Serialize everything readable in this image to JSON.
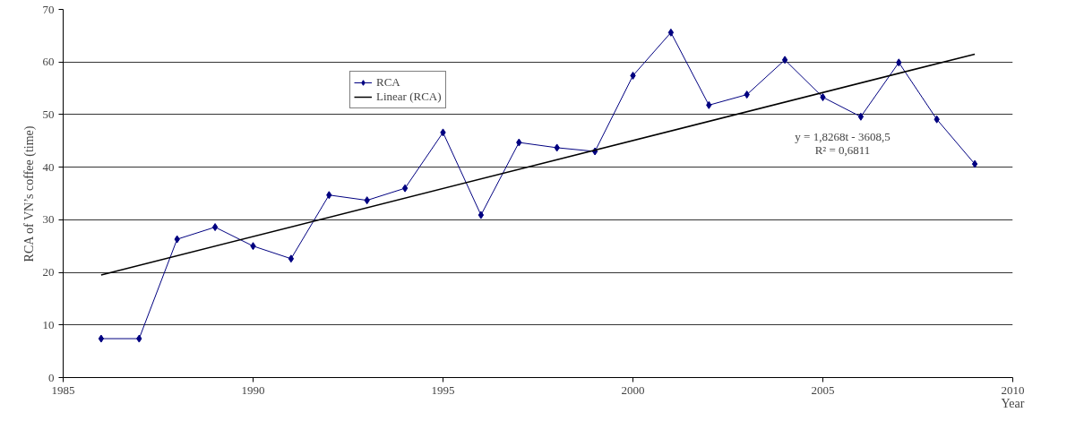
{
  "chart_data": {
    "type": "line",
    "xlabel": "Year",
    "ylabel": "RCA of VN’s coffee (time)",
    "x": [
      1986,
      1987,
      1988,
      1989,
      1990,
      1991,
      1992,
      1993,
      1994,
      1995,
      1996,
      1997,
      1998,
      1999,
      2000,
      2001,
      2002,
      2003,
      2004,
      2005,
      2006,
      2007,
      2008,
      2009
    ],
    "series": [
      {
        "name": "RCA",
        "color": "#000080",
        "marker": "diamond",
        "values": [
          7.4,
          7.4,
          26.3,
          28.6,
          25.0,
          22.6,
          34.7,
          33.7,
          36.0,
          46.6,
          30.9,
          44.7,
          43.7,
          43.0,
          57.4,
          65.6,
          51.8,
          53.8,
          60.4,
          53.3,
          49.6,
          59.9,
          49.1,
          40.6
        ]
      },
      {
        "name": "Linear (RCA)",
        "color": "#000000",
        "marker": "none",
        "x": [
          1986,
          2009
        ],
        "values": [
          19.5,
          61.5
        ]
      }
    ],
    "annotations": [
      "y = 1,8268t - 3608,5",
      "R² = 0,6811"
    ],
    "xlim": [
      1985,
      2010
    ],
    "xticks": [
      1985,
      1990,
      1995,
      2000,
      2005,
      2010
    ],
    "ylim": [
      0,
      70
    ],
    "yticks": [
      0,
      10,
      20,
      30,
      40,
      50,
      60,
      70
    ],
    "grid": "y",
    "legend": "top"
  }
}
